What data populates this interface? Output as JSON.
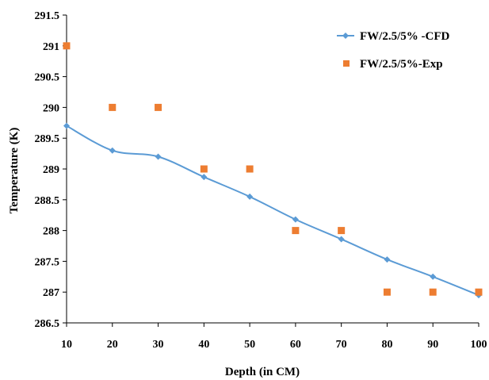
{
  "chart_data": {
    "type": "line",
    "xlabel": "Depth (in CM)",
    "ylabel": "Temperature (K)",
    "xlim": [
      10,
      100
    ],
    "ylim": [
      286.5,
      291.5
    ],
    "x_ticks": [
      "10",
      "20",
      "30",
      "40",
      "50",
      "60",
      "70",
      "80",
      "90",
      "100"
    ],
    "y_ticks": [
      "291.5",
      "291",
      "290.5",
      "290",
      "289.5",
      "289",
      "288.5",
      "288",
      "287.5",
      "287",
      "286.5"
    ],
    "grid": false,
    "legend_position": "top-right",
    "series": [
      {
        "name": "FW/2.5/5% -CFD",
        "kind": "smooth-line-with-diamond-markers",
        "color": "#5B9BD5",
        "x": [
          10,
          20,
          30,
          40,
          50,
          60,
          70,
          80,
          90,
          100
        ],
        "y": [
          289.7,
          289.3,
          289.2,
          288.87,
          288.55,
          288.18,
          287.86,
          287.53,
          287.25,
          286.95
        ]
      },
      {
        "name": "FW/2.5/5%-Exp",
        "kind": "square-markers",
        "color": "#ED7D31",
        "x": [
          10,
          20,
          30,
          40,
          50,
          60,
          70,
          80,
          90,
          100
        ],
        "y": [
          291,
          290,
          290,
          289,
          289,
          288,
          288,
          287,
          287,
          287
        ]
      }
    ]
  }
}
